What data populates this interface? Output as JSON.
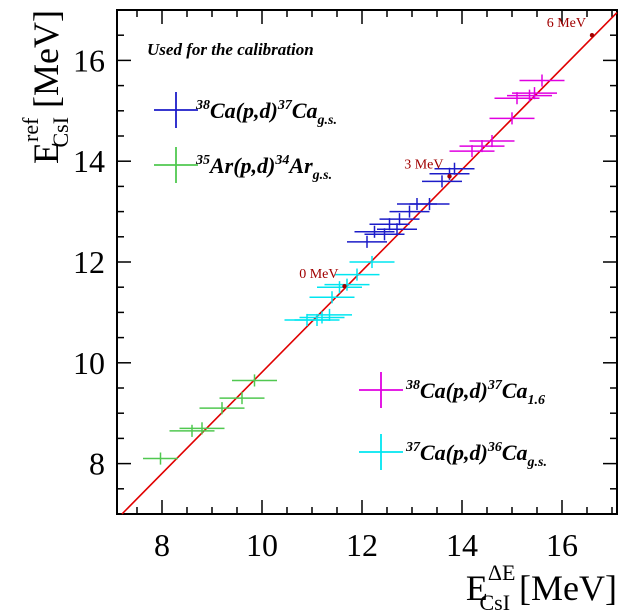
{
  "chart_data": {
    "type": "scatter",
    "title": "",
    "xlabel": {
      "main": "E",
      "sup": "ΔE",
      "sub": "CsI",
      "unit": " [MeV]"
    },
    "ylabel": {
      "main": "E",
      "sup": "ref",
      "sub": "CsI",
      "unit": " [MeV]"
    },
    "xlim": [
      7.1,
      17.1
    ],
    "ylim": [
      7.0,
      17.0
    ],
    "xticks": [
      8,
      10,
      12,
      14,
      16
    ],
    "yticks": [
      8,
      10,
      12,
      14,
      16
    ],
    "grid": false,
    "legend_header": "Used for the calibration",
    "fit_line": {
      "color": "#e00000",
      "points": [
        [
          7.2,
          7.0
        ],
        [
          17.1,
          16.95
        ]
      ]
    },
    "markers": [
      {
        "x": 11.65,
        "y": 11.52,
        "label": "0 MeV"
      },
      {
        "x": 13.75,
        "y": 13.7,
        "label": "3 MeV"
      },
      {
        "x": 16.6,
        "y": 16.5,
        "label": "6 MeV"
      }
    ],
    "marker_color": "#a00000",
    "series": [
      {
        "name": "38Ca(p,d)37Ca g.s.",
        "legend": {
          "sup1": "38",
          "a": "Ca(p,d)",
          "sup2": "37",
          "b": "Ca",
          "sub": "g.s."
        },
        "color": "#1c1cc8",
        "points": [
          [
            12.1,
            12.4,
            0.4,
            0.12
          ],
          [
            12.25,
            12.6,
            0.4,
            0.12
          ],
          [
            12.45,
            12.55,
            0.4,
            0.12
          ],
          [
            12.55,
            12.75,
            0.4,
            0.12
          ],
          [
            12.7,
            12.65,
            0.4,
            0.12
          ],
          [
            12.75,
            12.85,
            0.4,
            0.12
          ],
          [
            12.95,
            13.0,
            0.4,
            0.12
          ],
          [
            13.1,
            13.15,
            0.4,
            0.12
          ],
          [
            13.35,
            13.15,
            0.4,
            0.12
          ],
          [
            13.6,
            13.6,
            0.4,
            0.12
          ],
          [
            13.75,
            13.75,
            0.4,
            0.12
          ],
          [
            13.85,
            13.85,
            0.4,
            0.12
          ]
        ]
      },
      {
        "name": "35Ar(p,d)34Ar g.s.",
        "legend": {
          "sup1": "35",
          "a": "Ar(p,d)",
          "sup2": "34",
          "b": "Ar",
          "sub": "g.s."
        },
        "color": "#50c850",
        "points": [
          [
            7.97,
            8.1,
            0.35,
            0.12
          ],
          [
            8.6,
            8.65,
            0.45,
            0.12
          ],
          [
            8.8,
            8.7,
            0.45,
            0.12
          ],
          [
            9.2,
            9.1,
            0.45,
            0.12
          ],
          [
            9.6,
            9.3,
            0.45,
            0.12
          ],
          [
            9.85,
            9.65,
            0.45,
            0.12
          ]
        ]
      },
      {
        "name": "38Ca(p,d)37Ca 1.6",
        "legend": {
          "sup1": "38",
          "a": "Ca(p,d)",
          "sup2": "37",
          "b": "Ca",
          "sub": "1.6"
        },
        "color": "#e000e0",
        "points": [
          [
            14.2,
            14.2,
            0.45,
            0.12
          ],
          [
            14.4,
            14.3,
            0.45,
            0.12
          ],
          [
            14.6,
            14.4,
            0.45,
            0.12
          ],
          [
            15.0,
            14.85,
            0.45,
            0.12
          ],
          [
            15.1,
            15.25,
            0.45,
            0.12
          ],
          [
            15.35,
            15.3,
            0.45,
            0.12
          ],
          [
            15.45,
            15.35,
            0.45,
            0.12
          ],
          [
            15.6,
            15.6,
            0.45,
            0.12
          ]
        ]
      },
      {
        "name": "37Ca(p,d)36Ca g.s.",
        "legend": {
          "sup1": "37",
          "a": "Ca(p,d)",
          "sup2": "36",
          "b": "Ca",
          "sub": "g.s."
        },
        "color": "#00e6f0",
        "points": [
          [
            10.9,
            10.85,
            0.45,
            0.12
          ],
          [
            11.1,
            10.85,
            0.45,
            0.12
          ],
          [
            11.2,
            10.9,
            0.45,
            0.12
          ],
          [
            11.35,
            10.95,
            0.45,
            0.12
          ],
          [
            11.4,
            11.3,
            0.45,
            0.12
          ],
          [
            11.55,
            11.5,
            0.45,
            0.12
          ],
          [
            11.7,
            11.55,
            0.45,
            0.12
          ],
          [
            11.9,
            11.75,
            0.45,
            0.12
          ],
          [
            12.2,
            12.0,
            0.45,
            0.12
          ]
        ]
      }
    ]
  }
}
